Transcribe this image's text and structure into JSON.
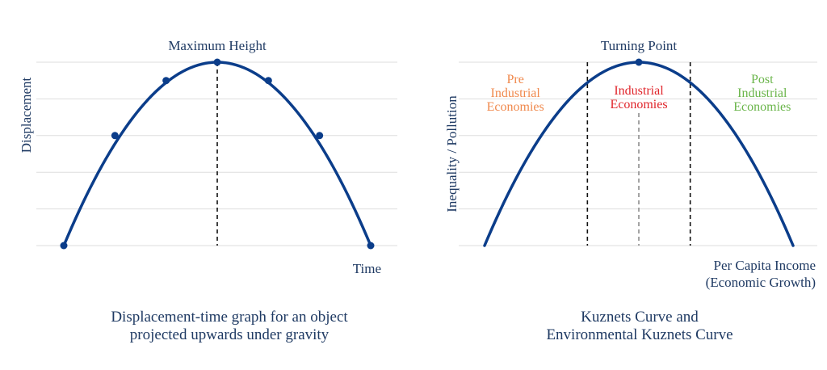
{
  "chart_data": [
    {
      "type": "line",
      "title": "Displacement-time graph for an object projected upwards under gravity",
      "xlabel": "Time",
      "ylabel": "Displacement",
      "ylim": [
        0,
        5
      ],
      "grid": true,
      "series": [
        {
          "x": [
            0,
            1,
            2,
            3,
            4,
            5,
            6
          ],
          "values": [
            0,
            3,
            4.5,
            5,
            4.5,
            3,
            0
          ]
        }
      ],
      "annotations": [
        {
          "text": "Maximum Height",
          "x": 3
        }
      ],
      "colors": {
        "curve": "#0b3d8a",
        "text": "#1f3a63"
      }
    },
    {
      "type": "line",
      "title": "Kuznets Curve and Environmental Kuznets Curve",
      "xlabel": "Per Capita Income\n(Economic Growth)",
      "ylabel": "Inequality / Pollution",
      "ylim": [
        0,
        5
      ],
      "grid": true,
      "series": [
        {
          "x": [
            0,
            1,
            2,
            3,
            4,
            5,
            6
          ],
          "values": [
            0,
            3,
            4.5,
            5,
            4.5,
            3,
            0
          ],
          "marker_x": 3
        }
      ],
      "regions": [
        {
          "label": "Pre\nIndustrial\nEconomies",
          "x": 0.6,
          "color": "#f0894d"
        },
        {
          "label": "Industrial\nEconomies",
          "x": 3.0,
          "color": "#e0242a"
        },
        {
          "label": "Post\nIndustrial\nEconomies",
          "x": 5.4,
          "color": "#6ab54a"
        }
      ],
      "dividers": [
        2,
        4
      ],
      "annotations": [
        {
          "text": "Turning Point",
          "x": 3
        }
      ],
      "colors": {
        "curve": "#0b3d8a",
        "text": "#1f3a63"
      }
    }
  ]
}
